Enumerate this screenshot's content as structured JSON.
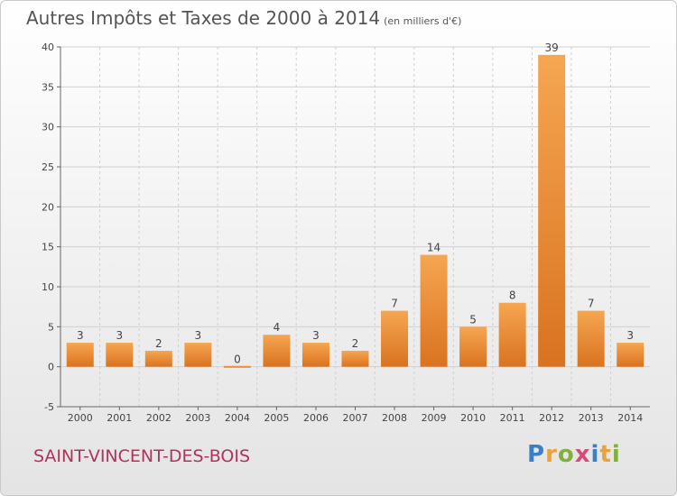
{
  "header": {
    "title": "Autres Impôts et Taxes de 2000 à 2014",
    "subtitle": "(en milliers d'€)"
  },
  "footer": {
    "town": "SAINT-VINCENT-DES-BOIS",
    "logo_letters": [
      "P",
      "r",
      "o",
      "x",
      "i",
      "t",
      "i"
    ],
    "logo_colors": [
      "#3b7fc4",
      "#e8a33d",
      "#7fb13b",
      "#d64b7a",
      "#3b7fc4",
      "#e8a33d",
      "#7fb13b"
    ]
  },
  "chart_data": {
    "type": "bar",
    "title": "Autres Impôts et Taxes de 2000 à 2014",
    "subtitle": "(en milliers d'€)",
    "categories": [
      "2000",
      "2001",
      "2002",
      "2003",
      "2004",
      "2005",
      "2006",
      "2007",
      "2008",
      "2009",
      "2010",
      "2011",
      "2012",
      "2013",
      "2014"
    ],
    "values": [
      3,
      3,
      2,
      3,
      0,
      4,
      3,
      2,
      7,
      14,
      5,
      8,
      39,
      7,
      3
    ],
    "ylim": [
      -5,
      40
    ],
    "yticks": [
      -5,
      0,
      5,
      10,
      15,
      20,
      25,
      30,
      35,
      40
    ],
    "ytick_labels": [
      "-5",
      "0",
      "5",
      "10",
      "15",
      "20",
      "25",
      "30",
      "35",
      "40"
    ],
    "grid": true,
    "colors": {
      "bar_light": "#f6a651",
      "bar_dark": "#d9731f",
      "grid": "#d0d0d0",
      "axis": "#666666"
    }
  }
}
